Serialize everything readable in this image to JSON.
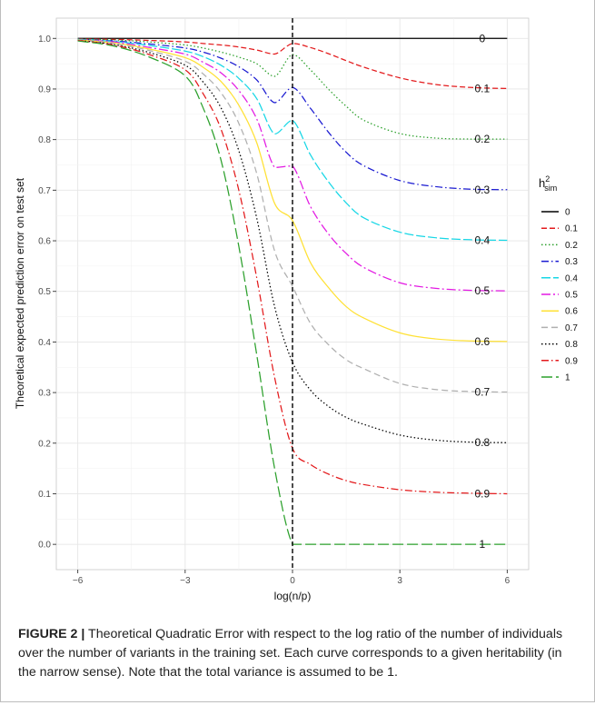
{
  "chart_data": {
    "type": "line",
    "xlabel": "log(n/p)",
    "ylabel": "Theoretical expected prediction error on test set",
    "xlim": [
      -6.6,
      6.6
    ],
    "ylim": [
      -0.05,
      1.04
    ],
    "x_ticks": [
      -6,
      -3,
      0,
      3,
      6
    ],
    "x_tick_labels": [
      "−6",
      "−3",
      "0",
      "3",
      "6"
    ],
    "y_ticks": [
      0.0,
      0.1,
      0.2,
      0.3,
      0.4,
      0.5,
      0.6,
      0.7,
      0.8,
      0.9,
      1.0
    ],
    "y_tick_labels": [
      "0.0",
      "0.1",
      "0.2",
      "0.3",
      "0.4",
      "0.5",
      "0.6",
      "0.7",
      "0.8",
      "0.9",
      "1.0"
    ],
    "grid": true,
    "vline": {
      "x": 0,
      "style": "dashed",
      "color": "#000000"
    },
    "x": [
      -6,
      -5,
      -4,
      -3,
      -2.5,
      -2,
      -1.5,
      -1,
      -0.5,
      0,
      0.5,
      1,
      1.5,
      2,
      3,
      4,
      5,
      6
    ],
    "legend": {
      "title_base": "h",
      "title_sup": "2",
      "title_sub": "sim",
      "placement": "right"
    },
    "series": [
      {
        "name": "0",
        "end_label": "0",
        "color": "#000000",
        "dash": "",
        "values": [
          1,
          1,
          1,
          1,
          1,
          1,
          1,
          1,
          1,
          1,
          1,
          1,
          1,
          1,
          1,
          1,
          1,
          1
        ]
      },
      {
        "name": "0.1",
        "end_label": "0.1",
        "color": "#e31a1c",
        "dash": "6,3",
        "values": [
          0.999,
          0.998,
          0.996,
          0.993,
          0.99,
          0.987,
          0.983,
          0.977,
          0.969,
          0.99,
          0.982,
          0.97,
          0.956,
          0.943,
          0.922,
          0.909,
          0.903,
          0.901
        ]
      },
      {
        "name": "0.2",
        "end_label": "0.2",
        "color": "#2ca02c",
        "dash": "1.5,2.5",
        "values": [
          0.999,
          0.997,
          0.993,
          0.987,
          0.981,
          0.973,
          0.963,
          0.95,
          0.925,
          0.968,
          0.938,
          0.9,
          0.866,
          0.838,
          0.812,
          0.803,
          0.801,
          0.801
        ]
      },
      {
        "name": "0.3",
        "end_label": "0.3",
        "color": "#1a1ad1",
        "dash": "8,3,1.5,3",
        "values": [
          0.998,
          0.995,
          0.989,
          0.981,
          0.973,
          0.961,
          0.944,
          0.918,
          0.873,
          0.903,
          0.862,
          0.815,
          0.775,
          0.748,
          0.719,
          0.707,
          0.702,
          0.701
        ]
      },
      {
        "name": "0.4",
        "end_label": "0.4",
        "color": "#17d7e6",
        "dash": "10,3",
        "values": [
          0.998,
          0.994,
          0.986,
          0.975,
          0.964,
          0.947,
          0.921,
          0.881,
          0.811,
          0.838,
          0.77,
          0.717,
          0.675,
          0.645,
          0.617,
          0.606,
          0.602,
          0.601
        ]
      },
      {
        "name": "0.5",
        "end_label": "0.5",
        "color": "#e31ae3",
        "dash": "10,3,2,3",
        "values": [
          0.997,
          0.993,
          0.982,
          0.969,
          0.953,
          0.932,
          0.897,
          0.841,
          0.745,
          0.748,
          0.668,
          0.614,
          0.575,
          0.547,
          0.517,
          0.506,
          0.502,
          0.501
        ]
      },
      {
        "name": "0.6",
        "end_label": "0.6",
        "color": "#ffe135",
        "dash": "",
        "values": [
          0.997,
          0.991,
          0.979,
          0.962,
          0.943,
          0.915,
          0.868,
          0.794,
          0.674,
          0.64,
          0.557,
          0.508,
          0.47,
          0.447,
          0.418,
          0.406,
          0.402,
          0.401
        ]
      },
      {
        "name": "0.7",
        "end_label": "0.7",
        "color": "#b0b0b0",
        "dash": "7,4",
        "values": [
          0.996,
          0.99,
          0.976,
          0.955,
          0.93,
          0.893,
          0.832,
          0.733,
          0.58,
          0.51,
          0.437,
          0.395,
          0.365,
          0.347,
          0.318,
          0.306,
          0.302,
          0.301
        ]
      },
      {
        "name": "0.8",
        "end_label": "0.8",
        "color": "#000000",
        "dash": "1.5,2.5",
        "values": [
          0.996,
          0.988,
          0.972,
          0.947,
          0.914,
          0.863,
          0.778,
          0.645,
          0.47,
          0.36,
          0.305,
          0.273,
          0.251,
          0.237,
          0.216,
          0.206,
          0.202,
          0.201
        ]
      },
      {
        "name": "0.9",
        "end_label": "0.9",
        "color": "#e31a1c",
        "dash": "8,3,1.5,3",
        "values": [
          0.996,
          0.987,
          0.968,
          0.938,
          0.891,
          0.821,
          0.7,
          0.527,
          0.33,
          0.19,
          0.158,
          0.139,
          0.126,
          0.118,
          0.108,
          0.103,
          0.101,
          0.1
        ]
      },
      {
        "name": "1",
        "end_label": "1",
        "color": "#2ca02c",
        "dash": "12,4",
        "values": [
          0.995,
          0.985,
          0.963,
          0.926,
          0.863,
          0.76,
          0.589,
          0.375,
          0.15,
          0.0,
          0.0,
          0.0,
          0.0,
          0.0,
          0.0,
          0.0,
          0.0,
          0.0
        ]
      }
    ]
  },
  "caption": {
    "label": "FIGURE 2 |",
    "text": " Theoretical Quadratic Error with respect to the log ratio of the number of individuals over the number of variants in the training set. Each curve corresponds to a given heritability (in the narrow sense). Note that the total variance is assumed to be 1."
  }
}
